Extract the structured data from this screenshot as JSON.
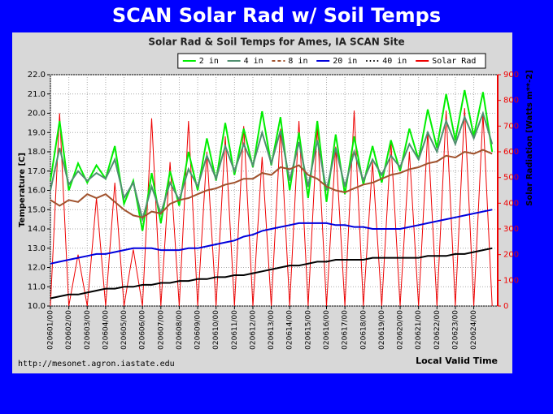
{
  "slide_title": "SCAN Solar Rad w/ Soil Temps",
  "chart_data": {
    "type": "line",
    "title": "Solar Rad & Soil Temps for Ames, IA SCAN Site",
    "ylabel": "Temperature [C]",
    "y2label": "Solar Radiation [Watts m**-2]",
    "xlabel": "Local Valid Time",
    "source": "http://mesonet.agron.iastate.edu",
    "grid": true,
    "legend": "top-right",
    "xlim": [
      0,
      24.3
    ],
    "xticks": [
      {
        "value": 0,
        "label": "020601/00"
      },
      {
        "value": 1,
        "label": "020602/00"
      },
      {
        "value": 2,
        "label": "020603/00"
      },
      {
        "value": 3,
        "label": "020604/00"
      },
      {
        "value": 4,
        "label": "020605/00"
      },
      {
        "value": 5,
        "label": "020606/00"
      },
      {
        "value": 6,
        "label": "020607/00"
      },
      {
        "value": 7,
        "label": "020608/00"
      },
      {
        "value": 8,
        "label": "020609/00"
      },
      {
        "value": 9,
        "label": "020610/00"
      },
      {
        "value": 10,
        "label": "020611/00"
      },
      {
        "value": 11,
        "label": "020612/00"
      },
      {
        "value": 12,
        "label": "020613/00"
      },
      {
        "value": 13,
        "label": "020614/00"
      },
      {
        "value": 14,
        "label": "020615/00"
      },
      {
        "value": 15,
        "label": "020616/00"
      },
      {
        "value": 16,
        "label": "020617/00"
      },
      {
        "value": 17,
        "label": "020618/00"
      },
      {
        "value": 18,
        "label": "020619/00"
      },
      {
        "value": 19,
        "label": "020620/00"
      },
      {
        "value": 20,
        "label": "020621/00"
      },
      {
        "value": 21,
        "label": "020622/00"
      },
      {
        "value": 22,
        "label": "020623/00"
      },
      {
        "value": 23,
        "label": "020624/00"
      }
    ],
    "ylim": [
      10,
      22
    ],
    "yticks": [
      {
        "value": 10,
        "label": "10.0"
      },
      {
        "value": 11,
        "label": "11.0"
      },
      {
        "value": 12,
        "label": "12.0"
      },
      {
        "value": 13,
        "label": "13.0"
      },
      {
        "value": 14,
        "label": "14.0"
      },
      {
        "value": 15,
        "label": "15.0"
      },
      {
        "value": 16,
        "label": "16.0"
      },
      {
        "value": 17,
        "label": "17.0"
      },
      {
        "value": 18,
        "label": "18.0"
      },
      {
        "value": 19,
        "label": "19.0"
      },
      {
        "value": 20,
        "label": "20.0"
      },
      {
        "value": 21,
        "label": "21.0"
      },
      {
        "value": 22,
        "label": "22.0"
      }
    ],
    "y2lim": [
      0,
      900
    ],
    "y2ticks": [
      0,
      100,
      200,
      300,
      400,
      500,
      600,
      700,
      800,
      900
    ],
    "x": [
      0,
      0.5,
      1,
      1.5,
      2,
      2.5,
      3,
      3.5,
      4,
      4.5,
      5,
      5.5,
      6,
      6.5,
      7,
      7.5,
      8,
      8.5,
      9,
      9.5,
      10,
      10.5,
      11,
      11.5,
      12,
      12.5,
      13,
      13.5,
      14,
      14.5,
      15,
      15.5,
      16,
      16.5,
      17,
      17.5,
      18,
      18.5,
      19,
      19.5,
      20,
      20.5,
      21,
      21.5,
      22,
      22.5,
      23,
      23.5,
      24
    ],
    "series": [
      {
        "name": "2 in",
        "color": "#00ee00",
        "style": "solid",
        "values": [
          16.5,
          19.6,
          16.0,
          17.4,
          16.4,
          17.3,
          16.6,
          18.3,
          15.3,
          16.5,
          13.9,
          16.9,
          14.3,
          17.0,
          15.2,
          18.0,
          16.0,
          18.7,
          16.5,
          19.5,
          16.8,
          19.2,
          17.2,
          20.1,
          17.3,
          19.8,
          16.0,
          19.0,
          15.6,
          19.6,
          15.4,
          18.9,
          15.8,
          18.8,
          16.3,
          18.3,
          16.4,
          18.6,
          17.0,
          19.2,
          17.6,
          20.2,
          18.2,
          21.0,
          18.6,
          21.2,
          18.8,
          21.1,
          18.0
        ]
      },
      {
        "name": "4 in",
        "color": "#4f8f6f",
        "style": "solid",
        "values": [
          16.0,
          18.2,
          16.3,
          17.0,
          16.5,
          16.9,
          16.6,
          17.6,
          15.6,
          16.4,
          14.5,
          16.2,
          14.8,
          16.4,
          15.5,
          17.1,
          16.2,
          17.8,
          16.6,
          18.3,
          17.0,
          18.4,
          17.3,
          19.0,
          17.4,
          19.1,
          16.5,
          18.5,
          16.2,
          18.6,
          16.0,
          18.2,
          16.2,
          18.0,
          16.5,
          17.6,
          16.8,
          17.8,
          17.2,
          18.4,
          17.6,
          19.0,
          18.0,
          19.6,
          18.4,
          19.8,
          18.7,
          20.0,
          18.4
        ]
      },
      {
        "name": "8 in",
        "color": "#a0522d",
        "style": "dashed",
        "values": [
          15.5,
          15.2,
          15.5,
          15.4,
          15.8,
          15.6,
          15.8,
          15.4,
          15.0,
          14.7,
          14.6,
          14.9,
          14.8,
          15.3,
          15.5,
          15.6,
          15.8,
          16.0,
          16.1,
          16.3,
          16.4,
          16.6,
          16.6,
          16.9,
          16.8,
          17.2,
          17.1,
          17.3,
          16.8,
          16.6,
          16.2,
          16.0,
          15.9,
          16.1,
          16.3,
          16.4,
          16.6,
          16.8,
          16.9,
          17.1,
          17.2,
          17.4,
          17.5,
          17.8,
          17.7,
          18.0,
          17.9,
          18.1,
          17.9
        ]
      },
      {
        "name": "20 in",
        "color": "#0000dd",
        "style": "solid",
        "values": [
          12.2,
          12.3,
          12.4,
          12.5,
          12.6,
          12.7,
          12.7,
          12.8,
          12.9,
          13.0,
          13.0,
          13.0,
          12.9,
          12.9,
          12.9,
          13.0,
          13.0,
          13.1,
          13.2,
          13.3,
          13.4,
          13.6,
          13.7,
          13.9,
          14.0,
          14.1,
          14.2,
          14.3,
          14.3,
          14.3,
          14.3,
          14.2,
          14.2,
          14.1,
          14.1,
          14.0,
          14.0,
          14.0,
          14.0,
          14.1,
          14.2,
          14.3,
          14.4,
          14.5,
          14.6,
          14.7,
          14.8,
          14.9,
          15.0
        ]
      },
      {
        "name": "40 in",
        "color": "#000000",
        "style": "dotted",
        "values": [
          10.4,
          10.5,
          10.6,
          10.6,
          10.7,
          10.8,
          10.9,
          10.9,
          11.0,
          11.0,
          11.1,
          11.1,
          11.2,
          11.2,
          11.3,
          11.3,
          11.4,
          11.4,
          11.5,
          11.5,
          11.6,
          11.6,
          11.7,
          11.8,
          11.9,
          12.0,
          12.1,
          12.1,
          12.2,
          12.3,
          12.3,
          12.4,
          12.4,
          12.4,
          12.4,
          12.5,
          12.5,
          12.5,
          12.5,
          12.5,
          12.5,
          12.6,
          12.6,
          12.6,
          12.7,
          12.7,
          12.8,
          12.9,
          13.0
        ]
      },
      {
        "name": "Solar Rad",
        "color": "#ee0000",
        "style": "solid",
        "axis": "y2",
        "values": [
          0,
          750,
          0,
          200,
          0,
          420,
          0,
          480,
          0,
          220,
          0,
          730,
          0,
          560,
          0,
          720,
          0,
          600,
          0,
          660,
          0,
          700,
          0,
          580,
          0,
          690,
          0,
          720,
          0,
          700,
          0,
          620,
          0,
          760,
          0,
          560,
          0,
          640,
          0,
          600,
          0,
          680,
          0,
          760,
          0,
          770,
          0,
          750,
          0
        ]
      }
    ]
  }
}
